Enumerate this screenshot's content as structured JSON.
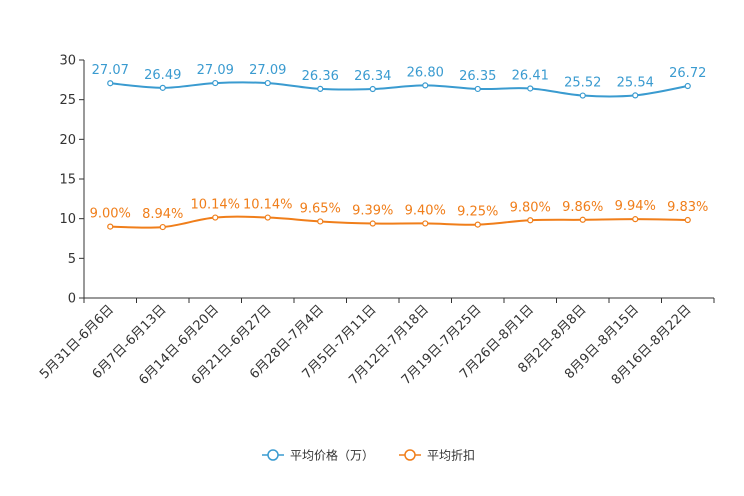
{
  "chart_data": {
    "type": "line",
    "title": "",
    "xlabel": "",
    "ylabel": "",
    "ylim": [
      0,
      30
    ],
    "yticks": [
      0,
      5,
      10,
      15,
      20,
      25,
      30
    ],
    "categories": [
      "5月31日-6月6日",
      "6月7日-6月13日",
      "6月14日-6月20日",
      "6月21日-6月27日",
      "6月28日-7月4日",
      "7月5日-7月11日",
      "7月12日-7月18日",
      "7月19日-7月25日",
      "7月26日-8月1日",
      "8月2日-8月8日",
      "8月9日-8月15日",
      "8月16日-8月22日"
    ],
    "series": [
      {
        "name": "平均价格（万）",
        "color": "#3a9bd0",
        "values": [
          27.07,
          26.49,
          27.09,
          27.09,
          26.36,
          26.34,
          26.8,
          26.35,
          26.41,
          25.52,
          25.54,
          26.72
        ],
        "labels": [
          "27.07",
          "26.49",
          "27.09",
          "27.09",
          "26.36",
          "26.34",
          "26.80",
          "26.35",
          "26.41",
          "25.52",
          "25.54",
          "26.72"
        ]
      },
      {
        "name": "平均折扣",
        "color": "#f07e1a",
        "values": [
          9.0,
          8.94,
          10.14,
          10.14,
          9.65,
          9.39,
          9.4,
          9.25,
          9.8,
          9.86,
          9.94,
          9.83
        ],
        "labels": [
          "9.00%",
          "8.94%",
          "10.14%",
          "10.14%",
          "9.65%",
          "9.39%",
          "9.40%",
          "9.25%",
          "9.80%",
          "9.86%",
          "9.94%",
          "9.83%"
        ]
      }
    ],
    "legend_position": "bottom-center",
    "grid": false
  }
}
